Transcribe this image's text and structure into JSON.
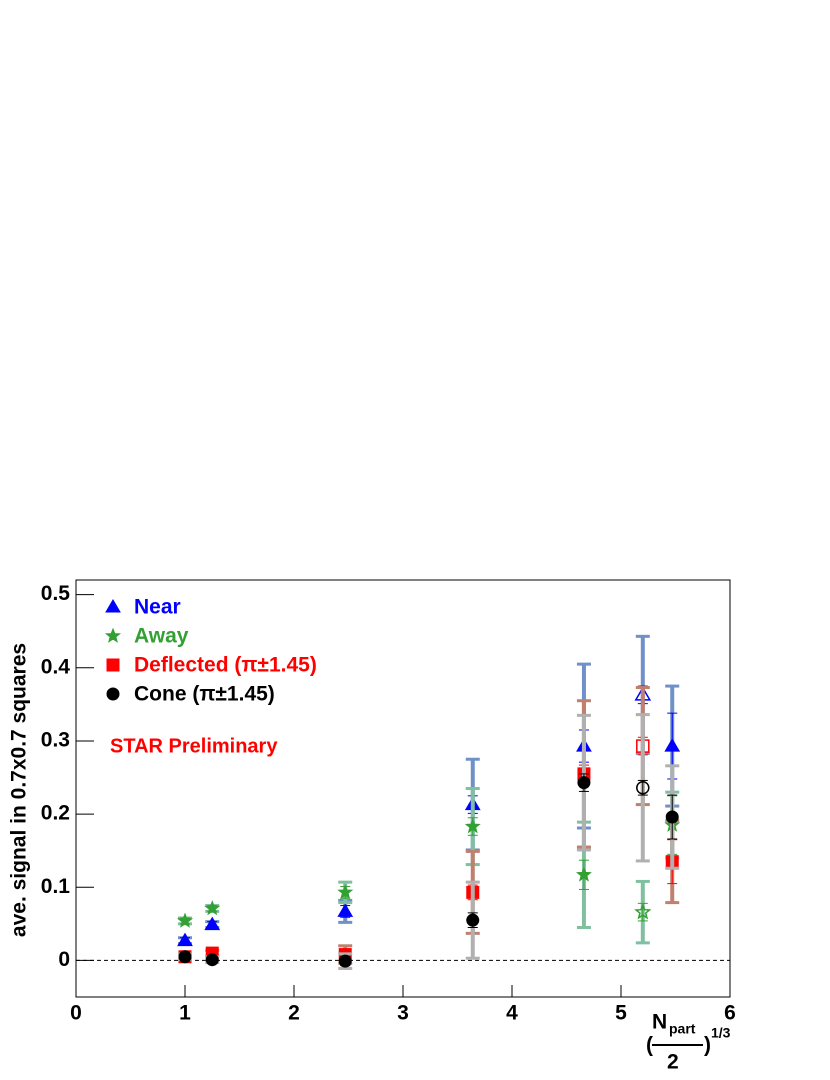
{
  "chart_data": {
    "type": "scatter",
    "y_label": "ave. signal in 0.7x0.7 squares",
    "x_label": {
      "open": "(",
      "numerator": "N",
      "subscript": "part",
      "denominator": "2",
      "close": ")",
      "exponent": "1/3"
    },
    "annotation": "STAR Preliminary",
    "annotation_color": "#ff0000",
    "x": [
      1,
      1.25,
      2.47,
      3.64,
      4.66,
      5.2,
      5.47
    ],
    "xlim": [
      0,
      6
    ],
    "xticks": [
      0,
      1,
      2,
      3,
      4,
      5,
      6
    ],
    "ylim": [
      -0.05,
      0.52
    ],
    "yticks": [
      0,
      0.1,
      0.2,
      0.3,
      0.4,
      0.5
    ],
    "hline": 0,
    "series": [
      {
        "name": "Near",
        "color": "#0000ff",
        "sys_color": "#7090c8",
        "marker": "triangle",
        "values": [
          0.027,
          0.049,
          0.067,
          0.213,
          0.293,
          0.363,
          0.293
        ],
        "errors": [
          0.004,
          0.004,
          0.008,
          0.012,
          0.022,
          0.012,
          0.045
        ],
        "sys_errors": [
          0.004,
          0.004,
          0.015,
          0.062,
          0.112,
          0.08,
          0.082
        ],
        "hollow": [
          false,
          false,
          false,
          false,
          false,
          true,
          false
        ]
      },
      {
        "name": "Away",
        "color": "#33a033",
        "sys_color": "#80c0a0",
        "marker": "star",
        "values": [
          0.054,
          0.071,
          0.093,
          0.183,
          0.117,
          0.066,
          0.185
        ],
        "errors": [
          0.004,
          0.004,
          0.008,
          0.012,
          0.02,
          0.012,
          0.04
        ],
        "sys_errors": [
          0.004,
          0.004,
          0.014,
          0.052,
          0.072,
          0.042,
          0.045
        ],
        "hollow": [
          false,
          false,
          false,
          false,
          false,
          true,
          false
        ]
      },
      {
        "name": "Deflected (π±1.45)",
        "color": "#ff0000",
        "sys_color": "#c08070",
        "marker": "square",
        "values": [
          0.005,
          0.01,
          0.008,
          0.093,
          0.255,
          0.293,
          0.135
        ],
        "errors": [
          0.003,
          0.003,
          0.006,
          0.01,
          0.012,
          0.012,
          0.03
        ],
        "sys_errors": [
          0.004,
          0.004,
          0.012,
          0.056,
          0.1,
          0.08,
          0.056
        ],
        "hollow": [
          false,
          false,
          false,
          false,
          false,
          true,
          false
        ]
      },
      {
        "name": "Cone (π±1.45)",
        "color": "#000000",
        "sys_color": "#b0b0b0",
        "marker": "circle",
        "values": [
          0.005,
          0.001,
          -0.001,
          0.055,
          0.243,
          0.236,
          0.196
        ],
        "errors": [
          0.003,
          0.003,
          0.006,
          0.01,
          0.012,
          0.01,
          0.03
        ],
        "sys_errors": [
          0.004,
          0.004,
          0.01,
          0.052,
          0.092,
          0.1,
          0.07
        ],
        "hollow": [
          false,
          false,
          false,
          false,
          false,
          true,
          false
        ]
      }
    ]
  }
}
